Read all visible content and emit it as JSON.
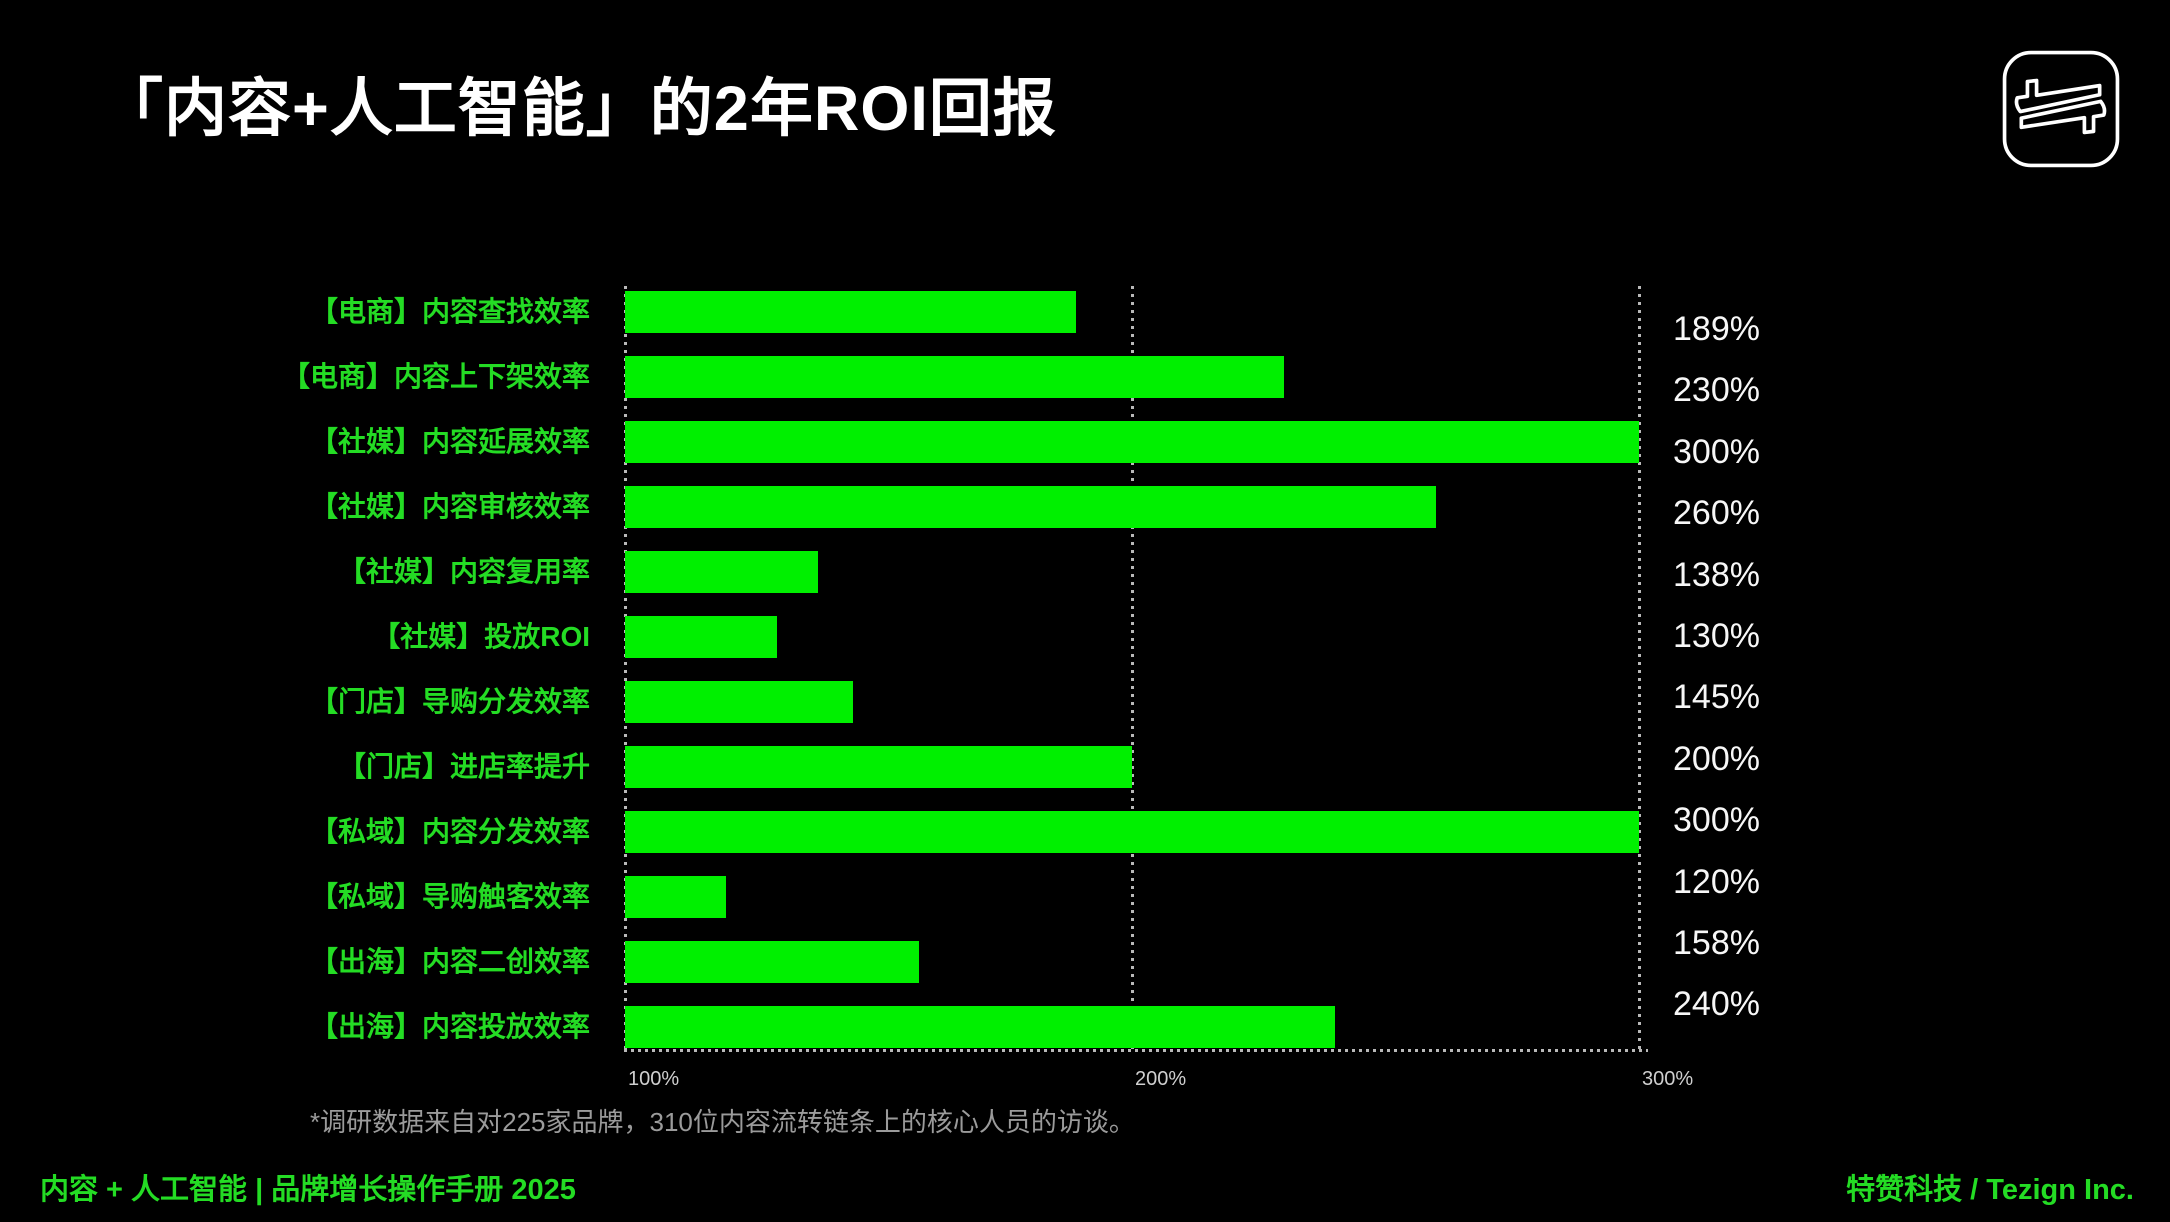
{
  "page": {
    "title": "「内容+人工智能」的2年ROI回报",
    "footnote": "*调研数据来自对225家品牌，310位内容流转链条上的核心人员的访谈。",
    "footer_left": "内容 + 人工智能 | 品牌增长操作手册 2025",
    "footer_right": "特赞科技 / Tezign Inc.",
    "logo_name": "tezign-double-like-logo"
  },
  "colors": {
    "background": "#000000",
    "bar_green": "#00F000",
    "text_green": "#24DC24",
    "value_white": "#F7F7F7",
    "tick_gray": "#CFCFCF",
    "footnote_gray": "#9B9B9B",
    "grid_gray": "#B9B9B9"
  },
  "chart_data": {
    "type": "bar",
    "orientation": "horizontal",
    "title": "「内容+人工智能」的2年ROI回报",
    "categories": [
      "【电商】内容查找效率",
      "【电商】内容上下架效率",
      "【社媒】内容延展效率",
      "【社媒】内容审核效率",
      "【社媒】内容复用率",
      "【社媒】投放ROI",
      "【门店】导购分发效率",
      "【门店】进店率提升",
      "【私域】内容分发效率",
      "【私域】导购触客效率",
      "【出海】内容二创效率",
      "【出海】内容投放效率"
    ],
    "values": [
      189,
      230,
      300,
      260,
      138,
      130,
      145,
      200,
      300,
      120,
      158,
      240
    ],
    "value_labels": [
      "189%",
      "230%",
      "300%",
      "260%",
      "138%",
      "130%",
      "145%",
      "200%",
      "300%",
      "120%",
      "158%",
      "240%"
    ],
    "xlim": [
      100,
      300
    ],
    "x_ticks": [
      {
        "label": "100%",
        "value": 100
      },
      {
        "label": "200%",
        "value": 200
      },
      {
        "label": "300%",
        "value": 300
      }
    ],
    "grid": "dotted vertical lines at each tick plus dotted baseline",
    "legend": "none",
    "bar_color": "#00F000"
  }
}
